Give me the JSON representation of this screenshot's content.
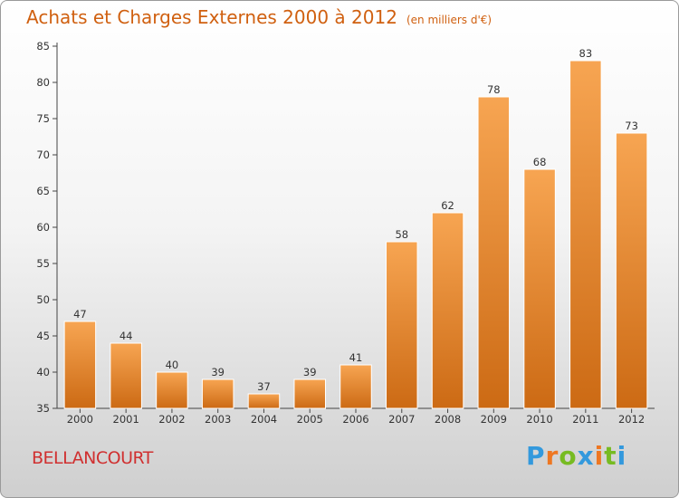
{
  "chart_data": {
    "type": "bar",
    "title": "Achats et Charges Externes 2000 à 2012",
    "unit_note": "(en milliers d'€)",
    "categories": [
      "2000",
      "2001",
      "2002",
      "2003",
      "2004",
      "2005",
      "2006",
      "2007",
      "2008",
      "2009",
      "2010",
      "2011",
      "2012"
    ],
    "values": [
      47,
      44,
      40,
      39,
      37,
      39,
      41,
      58,
      62,
      78,
      68,
      83,
      73
    ],
    "ylim": [
      35,
      85
    ],
    "yticks": [
      35,
      40,
      45,
      50,
      55,
      60,
      65,
      70,
      75,
      80,
      85
    ],
    "grid": false,
    "bar_color_top": "#f7a552",
    "bar_color_bottom": "#cc6a14"
  },
  "commune": "BELLANCOURT",
  "logo": {
    "letters": [
      "P",
      "r",
      "o",
      "x",
      "i",
      "t",
      "i"
    ],
    "colors": [
      "#3399dd",
      "#ee7722",
      "#77bb22",
      "#3399dd",
      "#ee7722",
      "#77bb22",
      "#3399dd"
    ]
  },
  "colors": {
    "title": "#d06010",
    "commune": "#d03030"
  }
}
